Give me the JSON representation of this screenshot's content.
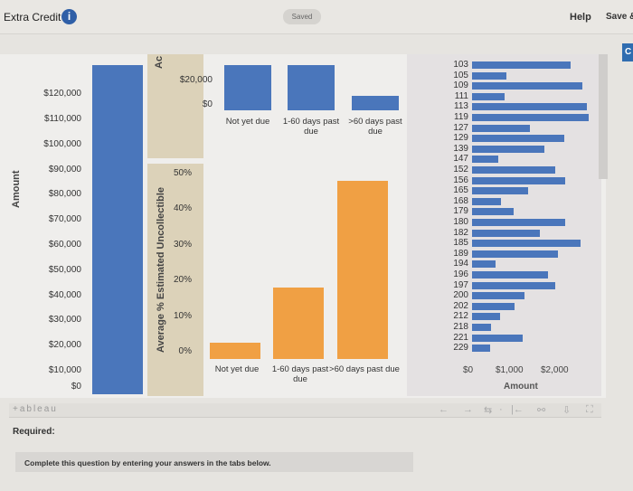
{
  "header": {
    "title": "Extra Credit",
    "info_icon": "info-icon",
    "saved": "Saved",
    "help": "Help",
    "save_exit": "Save &",
    "corner_button": "C"
  },
  "colors": {
    "blue": "#4a76bb",
    "orange": "#f0a044",
    "panel_tan": "#dcd2b9"
  },
  "chart_data": [
    {
      "type": "bar",
      "ylabel": "Amount",
      "ticks": [
        "$10,000",
        "$20,000",
        "$30,000",
        "$40,000",
        "$50,000",
        "$60,000",
        "$70,000",
        "$80,000",
        "$90,000",
        "$100,000",
        "$110,000",
        "$120,000"
      ],
      "zero_label": "$0",
      "values": [
        130000
      ],
      "note_cut": "bar extends above visible area"
    },
    {
      "type": "bar",
      "ylabel": "Ac",
      "categories": [
        "Not yet due",
        "1-60 days past due",
        ">60 days past due"
      ],
      "ticks": [
        "$0",
        "$20,000"
      ],
      "values": [
        40000,
        40000,
        12000
      ]
    },
    {
      "type": "bar",
      "ylabel": "Average % Estimated Uncollectible",
      "categories": [
        "Not yet due",
        "1-60 days past due",
        ">60 days past due"
      ],
      "ticks": [
        "0%",
        "10%",
        "20%",
        "30%",
        "40%",
        "50%"
      ],
      "values": [
        4.5,
        20,
        50
      ]
    },
    {
      "type": "bar",
      "orientation": "horizontal",
      "xlabel": "Amount",
      "xticks": [
        "$0",
        "$1,000",
        "$2,000"
      ],
      "categories": [
        "103",
        "105",
        "109",
        "111",
        "113",
        "119",
        "127",
        "129",
        "139",
        "147",
        "152",
        "156",
        "165",
        "168",
        "179",
        "180",
        "182",
        "185",
        "189",
        "194",
        "196",
        "197",
        "200",
        "202",
        "212",
        "218",
        "221",
        "229"
      ],
      "values": [
        2320,
        810,
        2590,
        770,
        2700,
        2750,
        1370,
        2180,
        1710,
        610,
        1950,
        2200,
        1320,
        690,
        980,
        2190,
        1590,
        2560,
        2030,
        560,
        1790,
        1960,
        1240,
        1000,
        650,
        440,
        1190,
        420
      ]
    }
  ],
  "footer": {
    "brand": "+ableau",
    "icons": [
      "undo-icon",
      "redo-icon",
      "revert-icon",
      "pause-icon",
      "reset-icon",
      "share-icon",
      "download-icon",
      "fullscreen-icon"
    ]
  },
  "required": "Required:",
  "notice": "Complete this question by entering your answers in the tabs below."
}
